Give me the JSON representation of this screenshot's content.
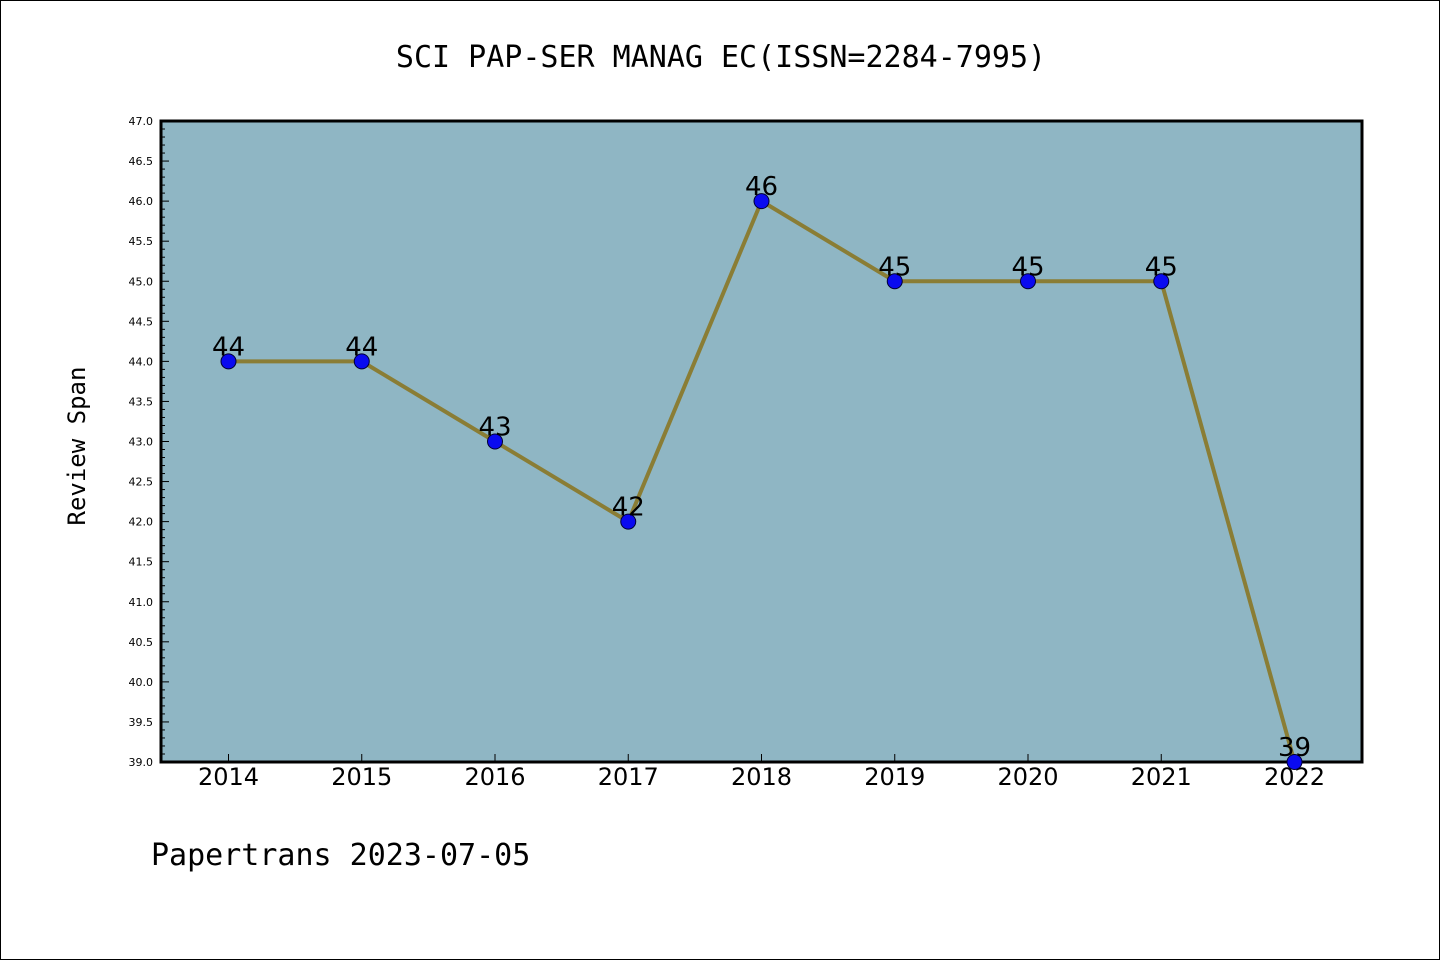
{
  "chart_data": {
    "type": "line",
    "title": "SCI PAP-SER MANAG EC(ISSN=2284-7995)",
    "xlabel": "",
    "ylabel": "Review Span",
    "categories": [
      "2014",
      "2015",
      "2016",
      "2017",
      "2018",
      "2019",
      "2020",
      "2021",
      "2022"
    ],
    "series": [
      {
        "values": [
          44,
          44,
          43,
          42,
          46,
          45,
          45,
          45,
          39
        ]
      }
    ],
    "data_labels": [
      "44",
      "44",
      "43",
      "42",
      "46",
      "45",
      "45",
      "45",
      "39"
    ],
    "ylim": [
      39.0,
      47.0
    ],
    "yticks": [
      "39.0",
      "39.5",
      "40.0",
      "40.5",
      "41.0",
      "41.5",
      "42.0",
      "42.5",
      "43.0",
      "43.5",
      "44.0",
      "44.5",
      "45.0",
      "45.5",
      "46.0",
      "46.5",
      "47.0"
    ],
    "grid": false,
    "colors": {
      "plot_background": "#8fb6c4",
      "line": "#8a7d35",
      "marker": "#0a0af0"
    }
  },
  "footer": {
    "text": "Papertrans 2023-07-05"
  }
}
